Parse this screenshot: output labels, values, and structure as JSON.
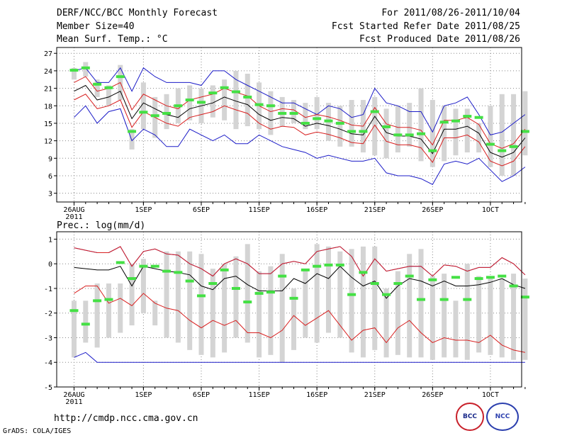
{
  "header": {
    "title": "DERF/NCC/BCC Monthly Forecast",
    "member_size": "Member Size=40",
    "variable": "Mean Surf. Temp.: °C",
    "period": "For 2011/08/26-2011/10/04",
    "started": "Fcst Started Refer Date 2011/08/25",
    "produced": "Fcst Produced Date 2011/08/26"
  },
  "panel2_label": "Prec.: log(mm/d)",
  "footer": {
    "url": "http://cmdp.ncc.cma.gov.cn",
    "grads": "GrADS: COLA/IGES",
    "logo_left": "BCC",
    "logo_right": "NCC"
  },
  "colors": {
    "box": "#d4d4d4",
    "median": "#44e044",
    "mean": "#000000",
    "std": "#d82020",
    "minmax": "#1c1cc8",
    "grid": "#888888"
  },
  "chart_data": [
    {
      "type": "box-ensemble",
      "title": "Mean Surf. Temp.: °C",
      "ylim": [
        1.5,
        28
      ],
      "yticks": [
        3,
        6,
        9,
        12,
        15,
        18,
        21,
        24,
        27
      ],
      "ytick_labels": [
        "3",
        "6",
        "9",
        "12",
        "15",
        "18",
        "21",
        "24",
        "27"
      ],
      "xlim": [
        -1.5,
        38.7
      ],
      "xticks": [
        0,
        6,
        11,
        16,
        21,
        26,
        31,
        36
      ],
      "xtick_labels": [
        "26AUG\n2011",
        "1SEP",
        "6SEP",
        "11SEP",
        "16SEP",
        "21SEP",
        "26SEP",
        "1OCT"
      ],
      "days": 40,
      "box_low": [
        22.5,
        23.0,
        19.5,
        18.0,
        19.0,
        10.5,
        14.0,
        12.5,
        14.0,
        15.0,
        15.5,
        15.0,
        16.0,
        15.5,
        14.0,
        14.5,
        14.0,
        13.0,
        14.5,
        15.0,
        14.0,
        14.0,
        12.0,
        11.0,
        11.0,
        10.0,
        9.5,
        9.0,
        10.0,
        11.0,
        8.5,
        7.5,
        8.5,
        9.5,
        10.0,
        10.0,
        7.5,
        6.0,
        6.0,
        9.5
      ],
      "box_high": [
        24.5,
        25.5,
        22.5,
        21.5,
        25.0,
        14.0,
        22.0,
        19.5,
        20.0,
        21.0,
        21.5,
        21.0,
        21.5,
        22.5,
        24.0,
        23.5,
        22.0,
        20.5,
        19.5,
        19.0,
        18.5,
        19.5,
        18.5,
        18.0,
        19.0,
        19.0,
        19.5,
        17.5,
        18.0,
        18.5,
        21.0,
        19.0,
        18.0,
        17.5,
        17.5,
        15.0,
        18.0,
        20.0,
        20.0,
        20.5
      ],
      "median": [
        24.1,
        24.5,
        21.7,
        21.1,
        23.0,
        13.6,
        16.9,
        16.3,
        16.7,
        18.0,
        19.0,
        18.6,
        20.2,
        21.1,
        20.4,
        19.5,
        18.2,
        18.0,
        16.7,
        16.7,
        15.0,
        15.8,
        15.4,
        15.0,
        13.6,
        13.6,
        17.0,
        14.4,
        13.0,
        13.0,
        13.2,
        10.3,
        15.2,
        15.4,
        16.2,
        16.0,
        11.4,
        10.3,
        11.0,
        13.6
      ],
      "mean": [
        20.5,
        21.5,
        19.0,
        19.5,
        20.5,
        15.8,
        18.5,
        17.5,
        16.5,
        16.0,
        17.5,
        18.0,
        18.5,
        19.5,
        18.8,
        18.2,
        16.5,
        15.5,
        16.0,
        15.8,
        14.5,
        15.0,
        14.6,
        14.0,
        13.2,
        13.0,
        16.2,
        13.4,
        12.8,
        12.8,
        12.3,
        9.8,
        14.0,
        14.0,
        14.5,
        13.3,
        10.0,
        9.2,
        10.0,
        12.5
      ],
      "std_high": [
        22.0,
        23.0,
        20.5,
        21.0,
        22.0,
        17.3,
        20.0,
        19.0,
        18.0,
        17.5,
        19.0,
        19.5,
        20.0,
        21.0,
        20.3,
        19.7,
        18.0,
        17.0,
        17.5,
        17.3,
        16.0,
        16.5,
        16.1,
        15.5,
        14.7,
        14.5,
        17.7,
        14.9,
        14.3,
        14.3,
        13.8,
        11.3,
        15.5,
        15.5,
        16.0,
        14.8,
        11.5,
        10.7,
        11.5,
        14.0
      ],
      "std_low": [
        19.0,
        20.0,
        17.5,
        18.0,
        19.0,
        14.3,
        17.0,
        16.0,
        15.0,
        14.5,
        16.0,
        16.5,
        17.0,
        18.0,
        17.3,
        16.7,
        15.0,
        14.0,
        14.5,
        14.3,
        13.0,
        13.5,
        13.1,
        12.5,
        11.7,
        11.5,
        14.7,
        11.9,
        11.3,
        11.3,
        10.8,
        8.3,
        12.5,
        12.5,
        13.0,
        11.8,
        8.5,
        7.7,
        8.5,
        11.0
      ],
      "max": [
        24.0,
        24.5,
        22.0,
        22.0,
        24.5,
        20.5,
        24.5,
        23.0,
        22.0,
        22.0,
        22.0,
        21.5,
        24.0,
        24.0,
        22.5,
        21.5,
        20.5,
        19.5,
        18.5,
        18.5,
        17.5,
        16.5,
        18.0,
        17.5,
        16.0,
        16.5,
        21.0,
        18.5,
        18.0,
        17.0,
        17.0,
        13.5,
        18.0,
        18.5,
        19.5,
        16.5,
        13.0,
        13.5,
        15.0,
        16.5
      ],
      "min": [
        16.0,
        18.0,
        15.0,
        17.0,
        17.5,
        12.0,
        14.0,
        13.0,
        11.0,
        11.0,
        14.0,
        13.0,
        12.0,
        13.0,
        11.5,
        11.5,
        13.0,
        12.0,
        11.0,
        10.5,
        10.0,
        9.0,
        9.5,
        9.0,
        8.5,
        8.5,
        9.0,
        6.5,
        6.0,
        6.0,
        5.5,
        4.5,
        8.0,
        8.5,
        8.0,
        9.0,
        7.0,
        5.0,
        6.0,
        7.5
      ]
    },
    {
      "type": "box-ensemble",
      "title": "Prec.: log(mm/d)",
      "ylim": [
        -5,
        1.3
      ],
      "yticks": [
        -5,
        -4,
        -3,
        -2,
        -1,
        0,
        1
      ],
      "ytick_labels": [
        "-5",
        "-4",
        "-3",
        "-2",
        "-1",
        "0",
        "1"
      ],
      "xlim": [
        -1.5,
        38.7
      ],
      "xticks": [
        0,
        6,
        11,
        16,
        21,
        26,
        31,
        36
      ],
      "xtick_labels": [
        "26AUG\n2011",
        "1SEP",
        "6SEP",
        "11SEP",
        "16SEP",
        "21SEP",
        "26SEP",
        "1OCT"
      ],
      "days": 40,
      "box_low": [
        -3.8,
        -3.2,
        -3.4,
        -3.0,
        -2.8,
        -2.5,
        -2.0,
        -2.5,
        -3.0,
        -3.2,
        -3.5,
        -3.7,
        -3.8,
        -3.6,
        -3.0,
        -3.2,
        -3.8,
        -3.7,
        -4.0,
        -3.5,
        -3.0,
        -3.2,
        -2.8,
        -3.0,
        -3.6,
        -3.8,
        -3.5,
        -3.8,
        -3.7,
        -3.8,
        -3.8,
        -3.9,
        -3.8,
        -3.8,
        -3.9,
        -3.6,
        -3.7,
        -3.8,
        -3.9,
        -3.9
      ],
      "box_high": [
        -1.5,
        -1.5,
        -0.8,
        -0.8,
        -0.8,
        0.0,
        0.2,
        -1.5,
        0.5,
        0.5,
        0.5,
        0.4,
        -0.2,
        0.0,
        0.3,
        0.8,
        -0.3,
        -0.1,
        0.4,
        -1.0,
        -0.3,
        0.8,
        0.7,
        0.5,
        0.6,
        0.7,
        0.7,
        -1.0,
        -0.3,
        0.4,
        0.6,
        -0.5,
        -0.4,
        -1.5,
        0.0,
        -0.5,
        -0.5,
        -0.6,
        -0.4,
        -0.6
      ],
      "median": [
        -1.9,
        -2.45,
        -1.5,
        -1.45,
        0.05,
        -0.6,
        -0.1,
        -0.1,
        -0.3,
        -0.35,
        -0.7,
        -1.3,
        -0.8,
        -0.25,
        -1.0,
        -1.55,
        -1.2,
        -1.15,
        -0.5,
        -1.4,
        -0.25,
        -0.1,
        -0.05,
        -0.05,
        -1.25,
        -0.35,
        -0.8,
        -1.25,
        -0.8,
        -0.5,
        -1.45,
        -0.65,
        -1.45,
        -0.55,
        -1.45,
        -0.6,
        -0.55,
        -0.5,
        -0.9,
        -1.35
      ],
      "mean": [
        -0.15,
        -0.2,
        -0.25,
        -0.25,
        -0.1,
        -0.9,
        -0.1,
        -0.2,
        -0.3,
        -0.35,
        -0.45,
        -0.9,
        -1.05,
        -0.6,
        -0.5,
        -0.85,
        -1.1,
        -1.1,
        -1.1,
        -0.6,
        -0.8,
        -0.4,
        -0.6,
        -0.1,
        -0.55,
        -0.9,
        -0.7,
        -1.4,
        -0.9,
        -0.6,
        -0.7,
        -0.9,
        -0.7,
        -0.9,
        -0.9,
        -0.85,
        -0.75,
        -0.6,
        -0.85,
        -1.0
      ],
      "std_high": [
        0.65,
        0.55,
        0.45,
        0.45,
        0.7,
        -0.1,
        0.5,
        0.6,
        0.4,
        0.35,
        0.0,
        -0.2,
        -0.5,
        0.0,
        0.2,
        0.0,
        -0.4,
        -0.4,
        0.0,
        0.1,
        0.0,
        0.5,
        0.6,
        0.7,
        0.3,
        -0.5,
        0.2,
        -0.3,
        -0.2,
        -0.1,
        -0.1,
        -0.5,
        -0.05,
        -0.1,
        -0.3,
        -0.15,
        -0.15,
        0.25,
        0.0,
        -0.45
      ],
      "std_low": [
        -1.2,
        -0.9,
        -0.9,
        -1.6,
        -1.4,
        -1.7,
        -1.2,
        -1.6,
        -1.8,
        -1.9,
        -2.3,
        -2.6,
        -2.3,
        -2.5,
        -2.3,
        -2.8,
        -2.8,
        -3.0,
        -2.7,
        -2.1,
        -2.5,
        -2.2,
        -1.9,
        -2.5,
        -3.1,
        -2.7,
        -2.6,
        -3.2,
        -2.6,
        -2.3,
        -2.8,
        -3.2,
        -3.0,
        -3.1,
        -3.1,
        -3.2,
        -2.9,
        -3.3,
        -3.5,
        -3.6
      ],
      "max": [
        0.65,
        0.55,
        0.45,
        0.45,
        0.7,
        -0.1,
        0.5,
        0.6,
        0.4,
        0.35,
        0.0,
        -0.2,
        -0.5,
        0.0,
        0.2,
        0.0,
        -0.4,
        -0.4,
        0.0,
        0.1,
        0.0,
        0.5,
        0.6,
        0.7,
        0.3,
        -0.5,
        0.2,
        -0.3,
        -0.2,
        -0.1,
        -0.1,
        -0.5,
        -0.05,
        -0.1,
        -0.3,
        -0.15,
        -0.15,
        0.25,
        0.0,
        -0.45
      ],
      "min": [
        -3.8,
        -3.6,
        -4.0,
        -4.0,
        -4.0,
        -4.0,
        -4.0,
        -4.0,
        -4.0,
        -4.0,
        -4.0,
        -4.0,
        -4.0,
        -4.0,
        -4.0,
        -4.0,
        -4.0,
        -4.0,
        -4.0,
        -4.0,
        -4.0,
        -4.0,
        -4.0,
        -4.0,
        -4.0,
        -4.0,
        -4.0,
        -4.0,
        -4.0,
        -4.0,
        -4.0,
        -4.0,
        -4.0,
        -4.0,
        -4.0,
        -4.0,
        -4.0,
        -4.0,
        -4.0,
        -4.0
      ]
    }
  ]
}
